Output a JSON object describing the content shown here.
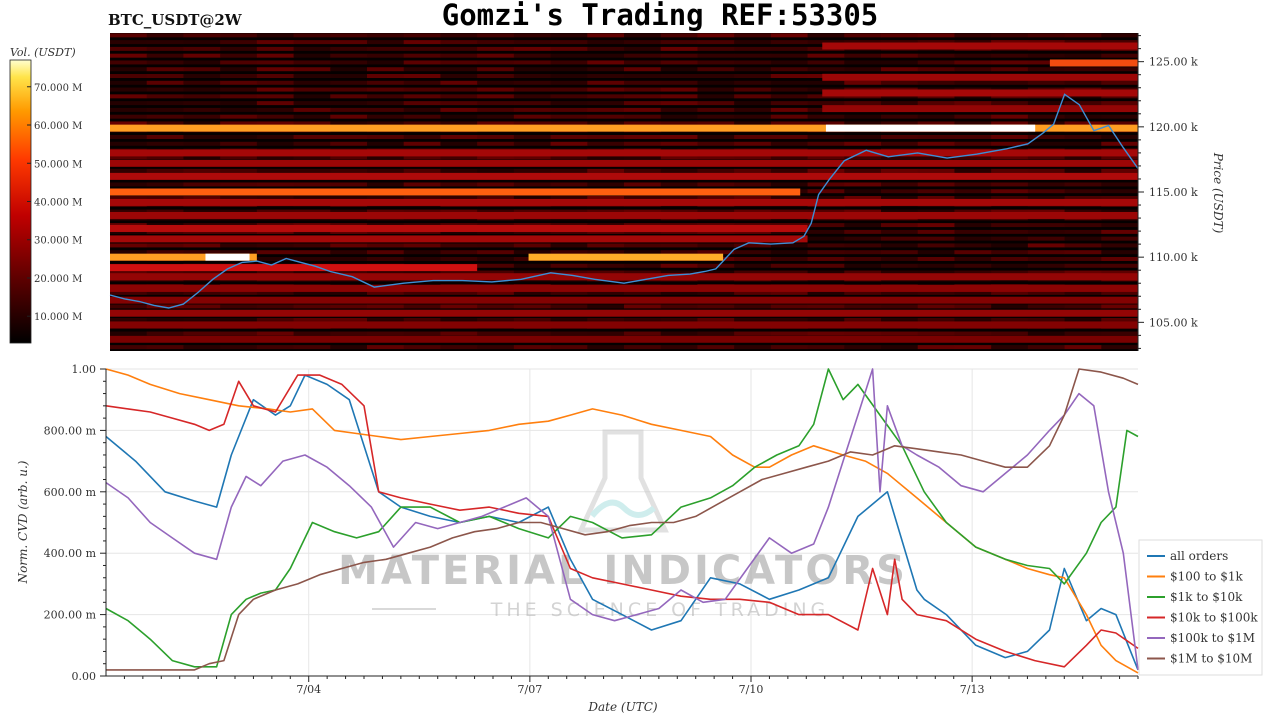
{
  "header": {
    "title": "Gomzi's Trading REF:53305",
    "symbol": "BTC_USDT@2W"
  },
  "watermark": {
    "line1": "MATERIAL INDICATORS",
    "line2": "THE SCIENCE OF TRADING"
  },
  "colorbar": {
    "label": "Vol. (USDT)",
    "ticks": [
      "70.000 M",
      "60.000 M",
      "50.000 M",
      "40.000 M",
      "30.000 M",
      "20.000 M",
      "10.000 M"
    ],
    "tick_values": [
      70,
      60,
      50,
      40,
      30,
      20,
      10
    ],
    "range": [
      3,
      77
    ]
  },
  "chart_data": [
    {
      "type": "heatmap",
      "title": "BTC_USDT@2W",
      "ylabel": "Price (USDT)",
      "y_ticks": [
        "125.00 k",
        "120.00 k",
        "115.00 k",
        "110.00 k",
        "105.00 k"
      ],
      "y_tick_values": [
        125000,
        120000,
        115000,
        110000,
        105000
      ],
      "ylim": [
        102800,
        127200
      ],
      "x_range_days": [
        0,
        14
      ],
      "colormap": [
        "#000000",
        "#7a0000",
        "#d01010",
        "#ff6010",
        "#ffc830",
        "#ffffff"
      ],
      "liquidity_bands": [
        {
          "price": 119900,
          "from": 0.0,
          "to": 14.0,
          "level": 0.72
        },
        {
          "price": 119900,
          "from": 9.75,
          "to": 12.6,
          "level": 1.0
        },
        {
          "price": 110000,
          "from": 0.0,
          "to": 2.0,
          "level": 0.72
        },
        {
          "price": 110000,
          "from": 1.3,
          "to": 1.9,
          "level": 1.0
        },
        {
          "price": 110000,
          "from": 5.7,
          "to": 8.35,
          "level": 0.75
        },
        {
          "price": 115000,
          "from": 0.0,
          "to": 9.4,
          "level": 0.6
        },
        {
          "price": 124900,
          "from": 12.8,
          "to": 14.0,
          "level": 0.55
        },
        {
          "price": 118000,
          "from": 0.0,
          "to": 14.0,
          "level": 0.3
        },
        {
          "price": 117200,
          "from": 0.0,
          "to": 14.0,
          "level": 0.28
        },
        {
          "price": 116200,
          "from": 0.0,
          "to": 14.0,
          "level": 0.32
        },
        {
          "price": 114200,
          "from": 0.0,
          "to": 14.0,
          "level": 0.3
        },
        {
          "price": 113200,
          "from": 0.0,
          "to": 14.0,
          "level": 0.28
        },
        {
          "price": 112200,
          "from": 0.0,
          "to": 9.5,
          "level": 0.34
        },
        {
          "price": 111400,
          "from": 0.0,
          "to": 9.5,
          "level": 0.3
        },
        {
          "price": 109200,
          "from": 0.0,
          "to": 5.0,
          "level": 0.4
        },
        {
          "price": 108500,
          "from": 0.0,
          "to": 14.0,
          "level": 0.26
        },
        {
          "price": 107600,
          "from": 0.0,
          "to": 14.0,
          "level": 0.24
        },
        {
          "price": 106700,
          "from": 0.0,
          "to": 14.0,
          "level": 0.22
        },
        {
          "price": 105700,
          "from": 0.0,
          "to": 14.0,
          "level": 0.26
        },
        {
          "price": 104800,
          "from": 0.0,
          "to": 14.0,
          "level": 0.22
        },
        {
          "price": 103700,
          "from": 0.0,
          "to": 14.0,
          "level": 0.2
        },
        {
          "price": 126200,
          "from": 9.7,
          "to": 14.0,
          "level": 0.3
        },
        {
          "price": 123800,
          "from": 9.7,
          "to": 14.0,
          "level": 0.28
        },
        {
          "price": 122600,
          "from": 9.7,
          "to": 14.0,
          "level": 0.3
        },
        {
          "price": 121400,
          "from": 9.7,
          "to": 14.0,
          "level": 0.26
        }
      ],
      "price_series": {
        "name": "",
        "color": "#3d8fd6",
        "x_days": [
          0,
          0.2,
          0.4,
          0.6,
          0.8,
          1.0,
          1.2,
          1.4,
          1.6,
          1.8,
          2.0,
          2.2,
          2.4,
          2.6,
          2.8,
          3.0,
          3.3,
          3.6,
          4.0,
          4.4,
          4.8,
          5.2,
          5.6,
          6.0,
          6.3,
          6.6,
          7.0,
          7.3,
          7.6,
          7.9,
          8.1,
          8.25,
          8.35,
          8.5,
          8.7,
          9.0,
          9.3,
          9.45,
          9.55,
          9.65,
          9.8,
          10.0,
          10.3,
          10.6,
          11.0,
          11.4,
          11.8,
          12.2,
          12.5,
          12.7,
          12.85,
          13.0,
          13.2,
          13.4,
          13.6,
          13.8,
          14.0
        ],
        "y": [
          107100,
          106800,
          106600,
          106300,
          106100,
          106400,
          107300,
          108300,
          109100,
          109600,
          109700,
          109400,
          109900,
          109600,
          109300,
          108900,
          108500,
          107700,
          108000,
          108200,
          108200,
          108100,
          108300,
          108800,
          108600,
          108300,
          108000,
          108300,
          108600,
          108700,
          108900,
          109100,
          109700,
          110600,
          111100,
          111000,
          111100,
          111600,
          112600,
          114800,
          116000,
          117400,
          118200,
          117700,
          118000,
          117600,
          117900,
          118300,
          118700,
          119500,
          120200,
          122500,
          121700,
          119700,
          120100,
          118400,
          116800
        ]
      }
    },
    {
      "type": "line",
      "title": "",
      "xlabel": "Date (UTC)",
      "ylabel": "Norm. CVD (arb. u.)",
      "x_ticks": [
        "7/04",
        "7/07",
        "7/10",
        "7/13"
      ],
      "x_tick_days": [
        2.75,
        5.75,
        8.75,
        11.75
      ],
      "y_ticks": [
        "1.00",
        "800.00 m",
        "600.00 m",
        "400.00 m",
        "200.00 m",
        "0.00"
      ],
      "y_tick_values": [
        1.0,
        0.8,
        0.6,
        0.4,
        0.2,
        0.0
      ],
      "ylim": [
        0,
        1
      ],
      "xlim_days": [
        0,
        14
      ],
      "legend_position": "right",
      "series": [
        {
          "name": "all orders",
          "color": "#1f77b4",
          "x": [
            0,
            0.4,
            0.8,
            1.2,
            1.5,
            1.7,
            2.0,
            2.3,
            2.5,
            2.7,
            3.0,
            3.3,
            3.5,
            3.7,
            4.0,
            4.4,
            4.8,
            5.2,
            5.6,
            6.0,
            6.3,
            6.6,
            7.0,
            7.4,
            7.8,
            8.2,
            8.6,
            9.0,
            9.4,
            9.8,
            10.2,
            10.6,
            10.9,
            11.0,
            11.1,
            11.4,
            11.8,
            12.2,
            12.5,
            12.8,
            13.0,
            13.3,
            13.5,
            13.7,
            14.0
          ],
          "y": [
            0.78,
            0.7,
            0.6,
            0.57,
            0.55,
            0.72,
            0.9,
            0.85,
            0.88,
            0.98,
            0.95,
            0.9,
            0.75,
            0.6,
            0.55,
            0.52,
            0.5,
            0.52,
            0.5,
            0.55,
            0.38,
            0.25,
            0.2,
            0.15,
            0.18,
            0.32,
            0.3,
            0.25,
            0.28,
            0.32,
            0.52,
            0.6,
            0.36,
            0.28,
            0.25,
            0.2,
            0.1,
            0.06,
            0.08,
            0.15,
            0.35,
            0.18,
            0.22,
            0.2,
            0.02
          ]
        },
        {
          "name": "$100 to $1k",
          "color": "#ff7f0e",
          "x": [
            0,
            0.3,
            0.6,
            1.0,
            1.4,
            1.8,
            2.2,
            2.5,
            2.8,
            3.1,
            3.4,
            3.7,
            4.0,
            4.4,
            4.8,
            5.2,
            5.6,
            6.0,
            6.3,
            6.6,
            7.0,
            7.4,
            7.8,
            8.2,
            8.5,
            8.8,
            9.0,
            9.3,
            9.6,
            10.0,
            10.3,
            10.6,
            11.0,
            11.4,
            11.8,
            12.2,
            12.5,
            12.8,
            13.0,
            13.3,
            13.5,
            13.7,
            14.0
          ],
          "y": [
            1.0,
            0.98,
            0.95,
            0.92,
            0.9,
            0.88,
            0.87,
            0.86,
            0.87,
            0.8,
            0.79,
            0.78,
            0.77,
            0.78,
            0.79,
            0.8,
            0.82,
            0.83,
            0.85,
            0.87,
            0.85,
            0.82,
            0.8,
            0.78,
            0.72,
            0.68,
            0.68,
            0.72,
            0.75,
            0.72,
            0.7,
            0.66,
            0.58,
            0.5,
            0.42,
            0.38,
            0.35,
            0.33,
            0.32,
            0.2,
            0.1,
            0.05,
            0.01
          ]
        },
        {
          "name": "$1k to $10k",
          "color": "#2ca02c",
          "x": [
            0,
            0.3,
            0.6,
            0.9,
            1.2,
            1.5,
            1.7,
            1.9,
            2.1,
            2.3,
            2.5,
            2.8,
            3.1,
            3.4,
            3.7,
            4.0,
            4.4,
            4.8,
            5.2,
            5.6,
            6.0,
            6.3,
            6.6,
            7.0,
            7.4,
            7.8,
            8.2,
            8.5,
            8.8,
            9.1,
            9.4,
            9.6,
            9.8,
            10.0,
            10.2,
            10.5,
            10.8,
            11.1,
            11.4,
            11.8,
            12.2,
            12.5,
            12.8,
            13.0,
            13.3,
            13.5,
            13.7,
            13.85,
            14.0
          ],
          "y": [
            0.22,
            0.18,
            0.12,
            0.05,
            0.03,
            0.03,
            0.2,
            0.25,
            0.27,
            0.28,
            0.35,
            0.5,
            0.47,
            0.45,
            0.47,
            0.55,
            0.55,
            0.5,
            0.52,
            0.48,
            0.45,
            0.52,
            0.5,
            0.45,
            0.46,
            0.55,
            0.58,
            0.62,
            0.68,
            0.72,
            0.75,
            0.82,
            1.0,
            0.9,
            0.95,
            0.85,
            0.75,
            0.6,
            0.5,
            0.42,
            0.38,
            0.36,
            0.35,
            0.3,
            0.4,
            0.5,
            0.55,
            0.8,
            0.78
          ]
        },
        {
          "name": "$10k to $100k",
          "color": "#d62728",
          "x": [
            0,
            0.3,
            0.6,
            0.9,
            1.2,
            1.4,
            1.6,
            1.8,
            2.0,
            2.3,
            2.6,
            2.9,
            3.2,
            3.5,
            3.7,
            4.0,
            4.4,
            4.8,
            5.2,
            5.6,
            6.0,
            6.3,
            6.6,
            7.0,
            7.4,
            7.8,
            8.2,
            8.6,
            9.0,
            9.4,
            9.8,
            10.2,
            10.4,
            10.6,
            10.7,
            10.8,
            11.0,
            11.4,
            11.8,
            12.2,
            12.6,
            13.0,
            13.3,
            13.5,
            13.7,
            14.0
          ],
          "y": [
            0.88,
            0.87,
            0.86,
            0.84,
            0.82,
            0.8,
            0.82,
            0.96,
            0.88,
            0.86,
            0.98,
            0.98,
            0.95,
            0.88,
            0.6,
            0.58,
            0.56,
            0.54,
            0.55,
            0.53,
            0.52,
            0.35,
            0.32,
            0.3,
            0.28,
            0.26,
            0.25,
            0.25,
            0.24,
            0.2,
            0.2,
            0.15,
            0.35,
            0.2,
            0.38,
            0.25,
            0.2,
            0.18,
            0.12,
            0.08,
            0.05,
            0.03,
            0.1,
            0.15,
            0.14,
            0.09
          ]
        },
        {
          "name": "$100k to $1M",
          "color": "#9467bd",
          "x": [
            0,
            0.3,
            0.6,
            0.9,
            1.2,
            1.5,
            1.7,
            1.9,
            2.1,
            2.4,
            2.7,
            3.0,
            3.3,
            3.6,
            3.9,
            4.2,
            4.5,
            4.8,
            5.1,
            5.4,
            5.7,
            6.0,
            6.3,
            6.6,
            6.9,
            7.2,
            7.5,
            7.8,
            8.1,
            8.4,
            8.7,
            9.0,
            9.3,
            9.6,
            9.8,
            10.0,
            10.2,
            10.4,
            10.5,
            10.6,
            10.8,
            11.0,
            11.3,
            11.6,
            11.9,
            12.2,
            12.5,
            12.8,
            13.0,
            13.2,
            13.4,
            13.6,
            13.8,
            14.0
          ],
          "y": [
            0.63,
            0.58,
            0.5,
            0.45,
            0.4,
            0.38,
            0.55,
            0.65,
            0.62,
            0.7,
            0.72,
            0.68,
            0.62,
            0.55,
            0.42,
            0.5,
            0.48,
            0.5,
            0.52,
            0.55,
            0.58,
            0.52,
            0.25,
            0.2,
            0.18,
            0.2,
            0.22,
            0.28,
            0.24,
            0.25,
            0.35,
            0.45,
            0.4,
            0.43,
            0.55,
            0.7,
            0.85,
            1.0,
            0.6,
            0.88,
            0.75,
            0.72,
            0.68,
            0.62,
            0.6,
            0.66,
            0.72,
            0.8,
            0.85,
            0.92,
            0.88,
            0.6,
            0.4,
            0.02
          ]
        },
        {
          "name": "$1M to $10M",
          "color": "#8c564b",
          "x": [
            0,
            0.6,
            1.2,
            1.4,
            1.6,
            1.8,
            2.0,
            2.3,
            2.6,
            2.9,
            3.2,
            3.5,
            3.8,
            4.1,
            4.4,
            4.7,
            5.0,
            5.3,
            5.6,
            5.9,
            6.2,
            6.5,
            6.8,
            7.1,
            7.4,
            7.7,
            8.0,
            8.3,
            8.6,
            8.9,
            9.2,
            9.5,
            9.8,
            10.1,
            10.4,
            10.7,
            11.0,
            11.3,
            11.6,
            11.9,
            12.2,
            12.5,
            12.8,
            13.0,
            13.2,
            13.5,
            13.8,
            14.0
          ],
          "y": [
            0.02,
            0.02,
            0.02,
            0.04,
            0.05,
            0.2,
            0.25,
            0.28,
            0.3,
            0.33,
            0.35,
            0.37,
            0.38,
            0.4,
            0.42,
            0.45,
            0.47,
            0.48,
            0.5,
            0.5,
            0.48,
            0.46,
            0.47,
            0.49,
            0.5,
            0.5,
            0.52,
            0.56,
            0.6,
            0.64,
            0.66,
            0.68,
            0.7,
            0.73,
            0.72,
            0.75,
            0.74,
            0.73,
            0.72,
            0.7,
            0.68,
            0.68,
            0.75,
            0.85,
            1.0,
            0.99,
            0.97,
            0.95
          ]
        }
      ]
    }
  ]
}
